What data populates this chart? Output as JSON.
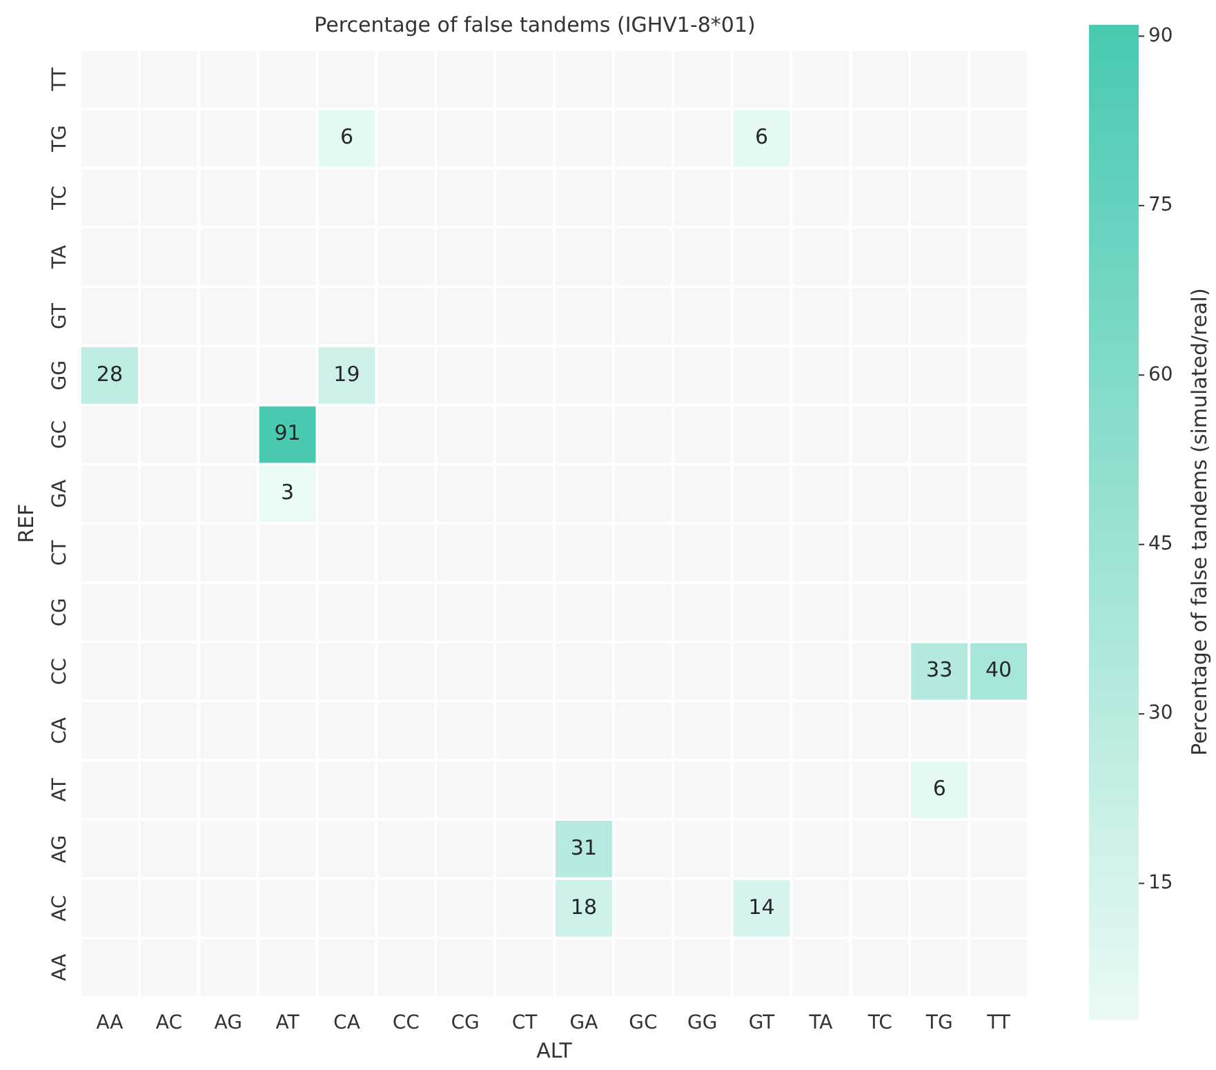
{
  "chart_data": {
    "type": "heatmap",
    "title": "Percentage of false tandems (IGHV1-8*01)",
    "xlabel": "ALT",
    "ylabel": "REF",
    "clabel": "Percentage of false tandems (simulated/real)",
    "categories": [
      "AA",
      "AC",
      "AG",
      "AT",
      "CA",
      "CC",
      "CG",
      "CT",
      "GA",
      "GC",
      "GG",
      "GT",
      "TA",
      "TC",
      "TG",
      "TT"
    ],
    "y_categories": [
      "TT",
      "TG",
      "TC",
      "TA",
      "GT",
      "GG",
      "GC",
      "GA",
      "CT",
      "CG",
      "CC",
      "CA",
      "AT",
      "AG",
      "AC",
      "AA"
    ],
    "cells": [
      [
        null,
        null,
        null,
        null,
        null,
        null,
        null,
        null,
        null,
        null,
        null,
        null,
        null,
        null,
        null,
        null
      ],
      [
        null,
        null,
        null,
        null,
        6,
        null,
        null,
        null,
        null,
        null,
        null,
        6,
        null,
        null,
        null,
        null
      ],
      [
        null,
        null,
        null,
        null,
        null,
        null,
        null,
        null,
        null,
        null,
        null,
        null,
        null,
        null,
        null,
        null
      ],
      [
        null,
        null,
        null,
        null,
        null,
        null,
        null,
        null,
        null,
        null,
        null,
        null,
        null,
        null,
        null,
        null
      ],
      [
        null,
        null,
        null,
        null,
        null,
        null,
        null,
        null,
        null,
        null,
        null,
        null,
        null,
        null,
        null,
        null
      ],
      [
        28,
        null,
        null,
        null,
        19,
        null,
        null,
        null,
        null,
        null,
        null,
        null,
        null,
        null,
        null,
        null
      ],
      [
        null,
        null,
        null,
        91,
        null,
        null,
        null,
        null,
        null,
        null,
        null,
        null,
        null,
        null,
        null,
        null
      ],
      [
        null,
        null,
        null,
        3,
        null,
        null,
        null,
        null,
        null,
        null,
        null,
        null,
        null,
        null,
        null,
        null
      ],
      [
        null,
        null,
        null,
        null,
        null,
        null,
        null,
        null,
        null,
        null,
        null,
        null,
        null,
        null,
        null,
        null
      ],
      [
        null,
        null,
        null,
        null,
        null,
        null,
        null,
        null,
        null,
        null,
        null,
        null,
        null,
        null,
        null,
        null
      ],
      [
        null,
        null,
        null,
        null,
        null,
        null,
        null,
        null,
        null,
        null,
        null,
        null,
        null,
        null,
        33,
        40
      ],
      [
        null,
        null,
        null,
        null,
        null,
        null,
        null,
        null,
        null,
        null,
        null,
        null,
        null,
        null,
        null,
        null
      ],
      [
        null,
        null,
        null,
        null,
        null,
        null,
        null,
        null,
        null,
        null,
        null,
        null,
        null,
        null,
        6,
        null
      ],
      [
        null,
        null,
        null,
        null,
        null,
        null,
        null,
        null,
        31,
        null,
        null,
        null,
        null,
        null,
        null,
        null
      ],
      [
        null,
        null,
        null,
        null,
        null,
        null,
        null,
        null,
        18,
        null,
        null,
        14,
        null,
        null,
        null,
        null
      ],
      [
        null,
        null,
        null,
        null,
        null,
        null,
        null,
        null,
        null,
        null,
        null,
        null,
        null,
        null,
        null,
        null
      ]
    ],
    "data_labels": true,
    "clim": [
      3,
      91
    ],
    "cticks": [
      15,
      30,
      45,
      60,
      75,
      90
    ]
  }
}
